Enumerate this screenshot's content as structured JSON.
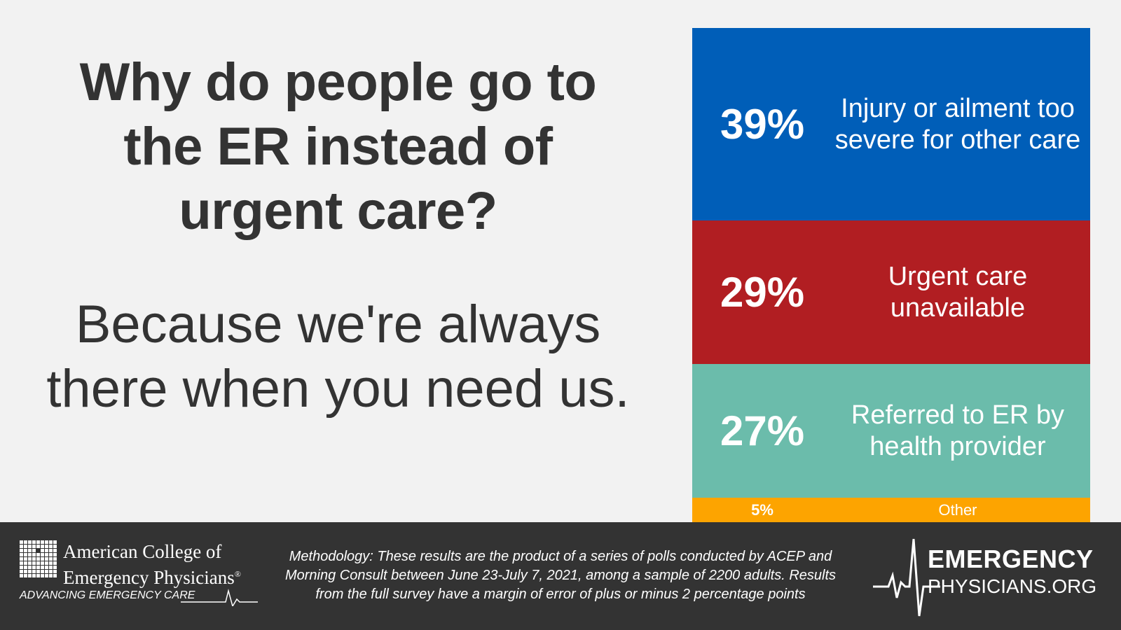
{
  "headline": "Why do people go to the ER instead of urgent care?",
  "subhead": "Because we're always there when you need us.",
  "chart_data": {
    "type": "bar",
    "orientation": "stacked-vertical",
    "categories": [
      "Injury or ailment too severe for other care",
      "Urgent care unavailable",
      "Referred to ER by health provider",
      "Other"
    ],
    "values": [
      39,
      29,
      27,
      5
    ],
    "value_labels": [
      "39%",
      "29%",
      "27%",
      "5%"
    ],
    "colors": [
      "#005eb8",
      "#b11e22",
      "#6bbcab",
      "#fda400"
    ],
    "units": "%"
  },
  "footer": {
    "acep_name_line1": "American College of",
    "acep_name_line2": "Emergency Physicians",
    "acep_mark": "®",
    "acep_tagline": "ADVANCING EMERGENCY CARE",
    "methodology": "Methodology: These results are the product of a series of polls conducted by ACEP and Morning Consult between June 23-July 7, 2021, among a sample of 2200 adults. Results from the full survey have a margin of error of plus or minus 2 percentage points",
    "ep_line1": "EMERGENCY",
    "ep_line2": "PHYSICIANS.ORG"
  },
  "colors": {
    "background": "#f2f2f2",
    "text": "#333333",
    "footer": "#333333"
  }
}
